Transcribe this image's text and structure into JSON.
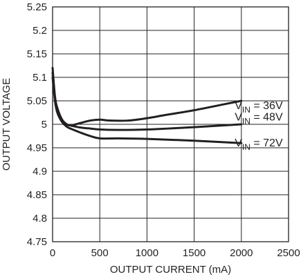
{
  "chart_data": {
    "type": "line",
    "xlabel": "OUTPUT CURRENT (mA)",
    "ylabel": "OUTPUT VOLTAGE",
    "xlim": [
      0,
      2500
    ],
    "ylim": [
      4.75,
      5.25
    ],
    "xticks": [
      0,
      500,
      1000,
      1500,
      2000,
      2500
    ],
    "yticks": [
      4.75,
      4.8,
      4.85,
      4.9,
      4.95,
      5,
      5.05,
      5.1,
      5.15,
      5.2,
      5.25
    ],
    "xtick_labels": [
      "0",
      "500",
      "1000",
      "1500",
      "2000",
      "2500"
    ],
    "ytick_labels": [
      "4.75",
      "4.8",
      "4.85",
      "4.9",
      "4.95",
      "5",
      "5.05",
      "5.1",
      "5.15",
      "5.2",
      "5.25"
    ],
    "grid": true,
    "series": [
      {
        "name": "36V",
        "x": [
          0,
          25,
          50,
          100,
          150,
          200,
          300,
          400,
          500,
          600,
          800,
          1000,
          1200,
          1500,
          1800,
          2000
        ],
        "y": [
          5.12,
          5.06,
          5.035,
          5.01,
          5.0,
          4.998,
          5.003,
          5.008,
          5.01,
          5.008,
          5.008,
          5.013,
          5.02,
          5.03,
          5.042,
          5.05
        ]
      },
      {
        "name": "48V",
        "x": [
          0,
          25,
          50,
          100,
          150,
          200,
          300,
          400,
          500,
          700,
          1000,
          1500,
          2000
        ],
        "y": [
          5.11,
          5.055,
          5.03,
          5.01,
          5.0,
          4.997,
          4.993,
          4.991,
          4.989,
          4.988,
          4.989,
          4.994,
          5.0
        ]
      },
      {
        "name": "72V",
        "x": [
          0,
          25,
          50,
          100,
          150,
          200,
          300,
          400,
          500,
          700,
          1000,
          1500,
          2000
        ],
        "y": [
          5.1,
          5.05,
          5.025,
          5.005,
          4.995,
          4.99,
          4.982,
          4.975,
          4.97,
          4.97,
          4.969,
          4.965,
          4.96
        ]
      }
    ],
    "annotations": [
      {
        "prefix": "V",
        "sub": "IN",
        "text": " = 36V",
        "x": 1930,
        "y": 5.032
      },
      {
        "prefix": "V",
        "sub": "IN",
        "text": " = 48V",
        "x": 1930,
        "y": 5.008
      },
      {
        "prefix": "V",
        "sub": "IN",
        "text": " = 72V",
        "x": 1930,
        "y": 4.953
      }
    ],
    "colors": {
      "line": "#231f20",
      "grid": "#231f20",
      "background": "#ffffff"
    }
  }
}
